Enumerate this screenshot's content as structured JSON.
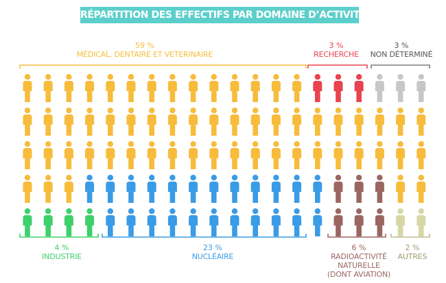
{
  "title": "RÉPARTITION DES EFFECTIFS PAR DOMAINE D’ACTIVITÉ",
  "colors": {
    "medical": "#f7bc3b",
    "recherche": "#e8434f",
    "non_determine": "#c7c7c7",
    "industrie": "#3dd06b",
    "nucleaire": "#3a9be6",
    "radio": "#9b6661",
    "autres": "#d7d6a6"
  },
  "chart_data": {
    "type": "pictogram",
    "unit": "1 figure = 1 %",
    "grid": {
      "rows": 5,
      "cols": 20
    },
    "series": [
      {
        "key": "medical",
        "name": "MÉDICAL, DENTAIRE ET VETERINAIRE",
        "value": 59,
        "pct_label": "59 %"
      },
      {
        "key": "recherche",
        "name": "RECHERCHE",
        "value": 3,
        "pct_label": "3 %"
      },
      {
        "key": "non_determine",
        "name": "NON DÉTERMINÉ",
        "value": 3,
        "pct_label": "3 %"
      },
      {
        "key": "industrie",
        "name": "INDUSTRIE",
        "value": 4,
        "pct_label": "4 %"
      },
      {
        "key": "nucleaire",
        "name": "NUCLÉAIRE",
        "value": 23,
        "pct_label": "23 %"
      },
      {
        "key": "radio",
        "name": [
          "RADIOACTIVITÉ",
          "NATURELLE",
          "(DONT AVIATION)"
        ],
        "value": 6,
        "pct_label": "6 %"
      },
      {
        "key": "autres",
        "name": "AUTRES",
        "value": 2,
        "pct_label": "2 %"
      }
    ],
    "grid_layout": [
      "MMMMMMMMMMMMMMRRRNNN",
      "MMMMMMMMMMMMMMMMMMMM",
      "MMMMMMMMMMMMMMMMMMMM",
      "MMMCCCCCCCCCCCCDDDMM",
      "IIIICCCCCCCCCCCDDDAA"
    ],
    "grid_keys": {
      "M": "medical",
      "R": "recherche",
      "N": "non_determine",
      "I": "industrie",
      "C": "nucleaire",
      "D": "radio",
      "A": "autres"
    }
  }
}
